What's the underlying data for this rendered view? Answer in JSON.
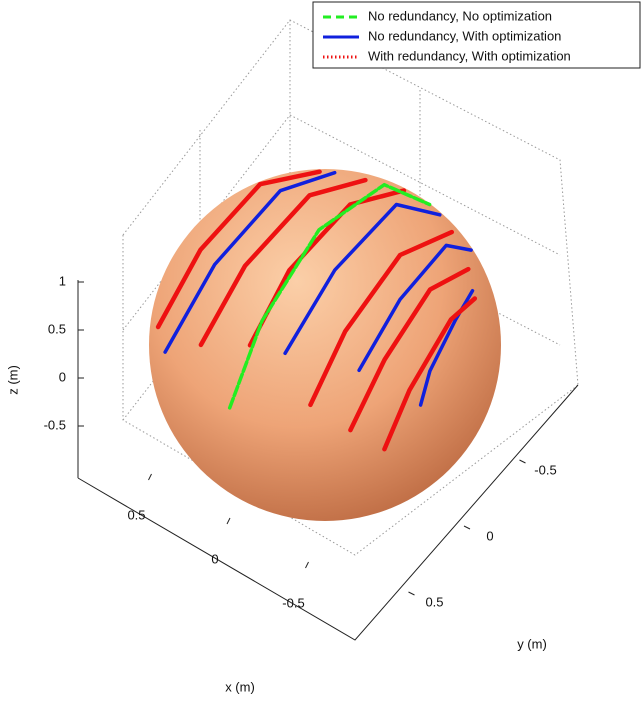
{
  "chart_data": {
    "type": "line3d",
    "xlabel": "x (m)",
    "ylabel": "y (m)",
    "zlabel": "z (m)",
    "xticks": [
      -0.5,
      0,
      0.5
    ],
    "yticks": [
      -0.5,
      0,
      0.5
    ],
    "zticks": [
      -0.5,
      0,
      0.5,
      1
    ],
    "legend": "upper right",
    "series": [
      {
        "name": "No redundancy, No optimization",
        "color": "#22ee22",
        "linestyle": "dashed",
        "curves": [
          {
            "x": [
              0.02,
              0.04,
              0.07,
              0.07,
              -0.12
            ],
            "y": [
              0.92,
              0.57,
              -0.04,
              -0.69,
              -0.87
            ],
            "z": [
              0.39,
              0.82,
              1.0,
              0.72,
              0.48
            ]
          }
        ]
      },
      {
        "name": "No redundancy, With optimization",
        "color": "#1020dd",
        "linestyle": "solid",
        "curves": [
          {
            "x": [
              0.59,
              0.51,
              0.48,
              0.36
            ],
            "y": [
              0.75,
              0.37,
              -0.24,
              -0.61
            ],
            "z": [
              0.3,
              0.78,
              0.84,
              0.7
            ]
          },
          {
            "x": [
              -0.17,
              -0.16,
              -0.12,
              -0.24
            ],
            "y": [
              0.64,
              0.13,
              -0.54,
              -0.8
            ],
            "z": [
              0.75,
              0.98,
              0.84,
              0.55
            ]
          },
          {
            "x": [
              -0.56,
              -0.53,
              -0.46,
              -0.48
            ],
            "y": [
              0.46,
              0.01,
              -0.55,
              -0.77
            ],
            "z": [
              0.69,
              0.85,
              0.7,
              0.43
            ]
          },
          {
            "x": [
              -0.87,
              -0.83,
              -0.77,
              -0.7
            ],
            "y": [
              0.29,
              0.14,
              -0.2,
              -0.47
            ],
            "z": [
              0.41,
              0.54,
              0.61,
              0.54
            ]
          }
        ]
      },
      {
        "name": "With redundancy, With optimization",
        "color": "#ee1111",
        "linestyle": "dotted",
        "curves": [
          {
            "x": [
              0.73,
              0.68,
              0.67,
              0.43
            ],
            "y": [
              0.62,
              0.27,
              -0.31,
              -0.56
            ],
            "z": [
              0.29,
              0.68,
              0.68,
              0.71
            ]
          },
          {
            "x": [
              0.34,
              0.32,
              0.29,
              0.16
            ],
            "y": [
              0.75,
              0.34,
              -0.26,
              -0.63
            ],
            "z": [
              0.56,
              0.88,
              0.92,
              0.76
            ]
          },
          {
            "x": [
              0.04,
              0.06,
              0.05,
              0.01
            ],
            "y": [
              0.69,
              0.27,
              -0.32,
              -0.8
            ],
            "z": [
              0.72,
              0.96,
              0.95,
              0.59
            ]
          },
          {
            "x": [
              -0.41,
              -0.4,
              -0.37,
              -0.38
            ],
            "y": [
              0.73,
              0.37,
              -0.22,
              -0.72
            ],
            "z": [
              0.54,
              0.84,
              0.9,
              0.58
            ]
          },
          {
            "x": [
              -0.64,
              -0.64,
              -0.6,
              -0.6
            ],
            "y": [
              0.66,
              0.32,
              -0.19,
              -0.57
            ],
            "z": [
              0.4,
              0.7,
              0.78,
              0.56
            ]
          },
          {
            "x": [
              -0.8,
              -0.8,
              -0.76,
              -0.73
            ],
            "y": [
              0.55,
              0.3,
              -0.17,
              -0.45
            ],
            "z": [
              0.22,
              0.51,
              0.64,
              0.51
            ]
          }
        ]
      }
    ]
  }
}
